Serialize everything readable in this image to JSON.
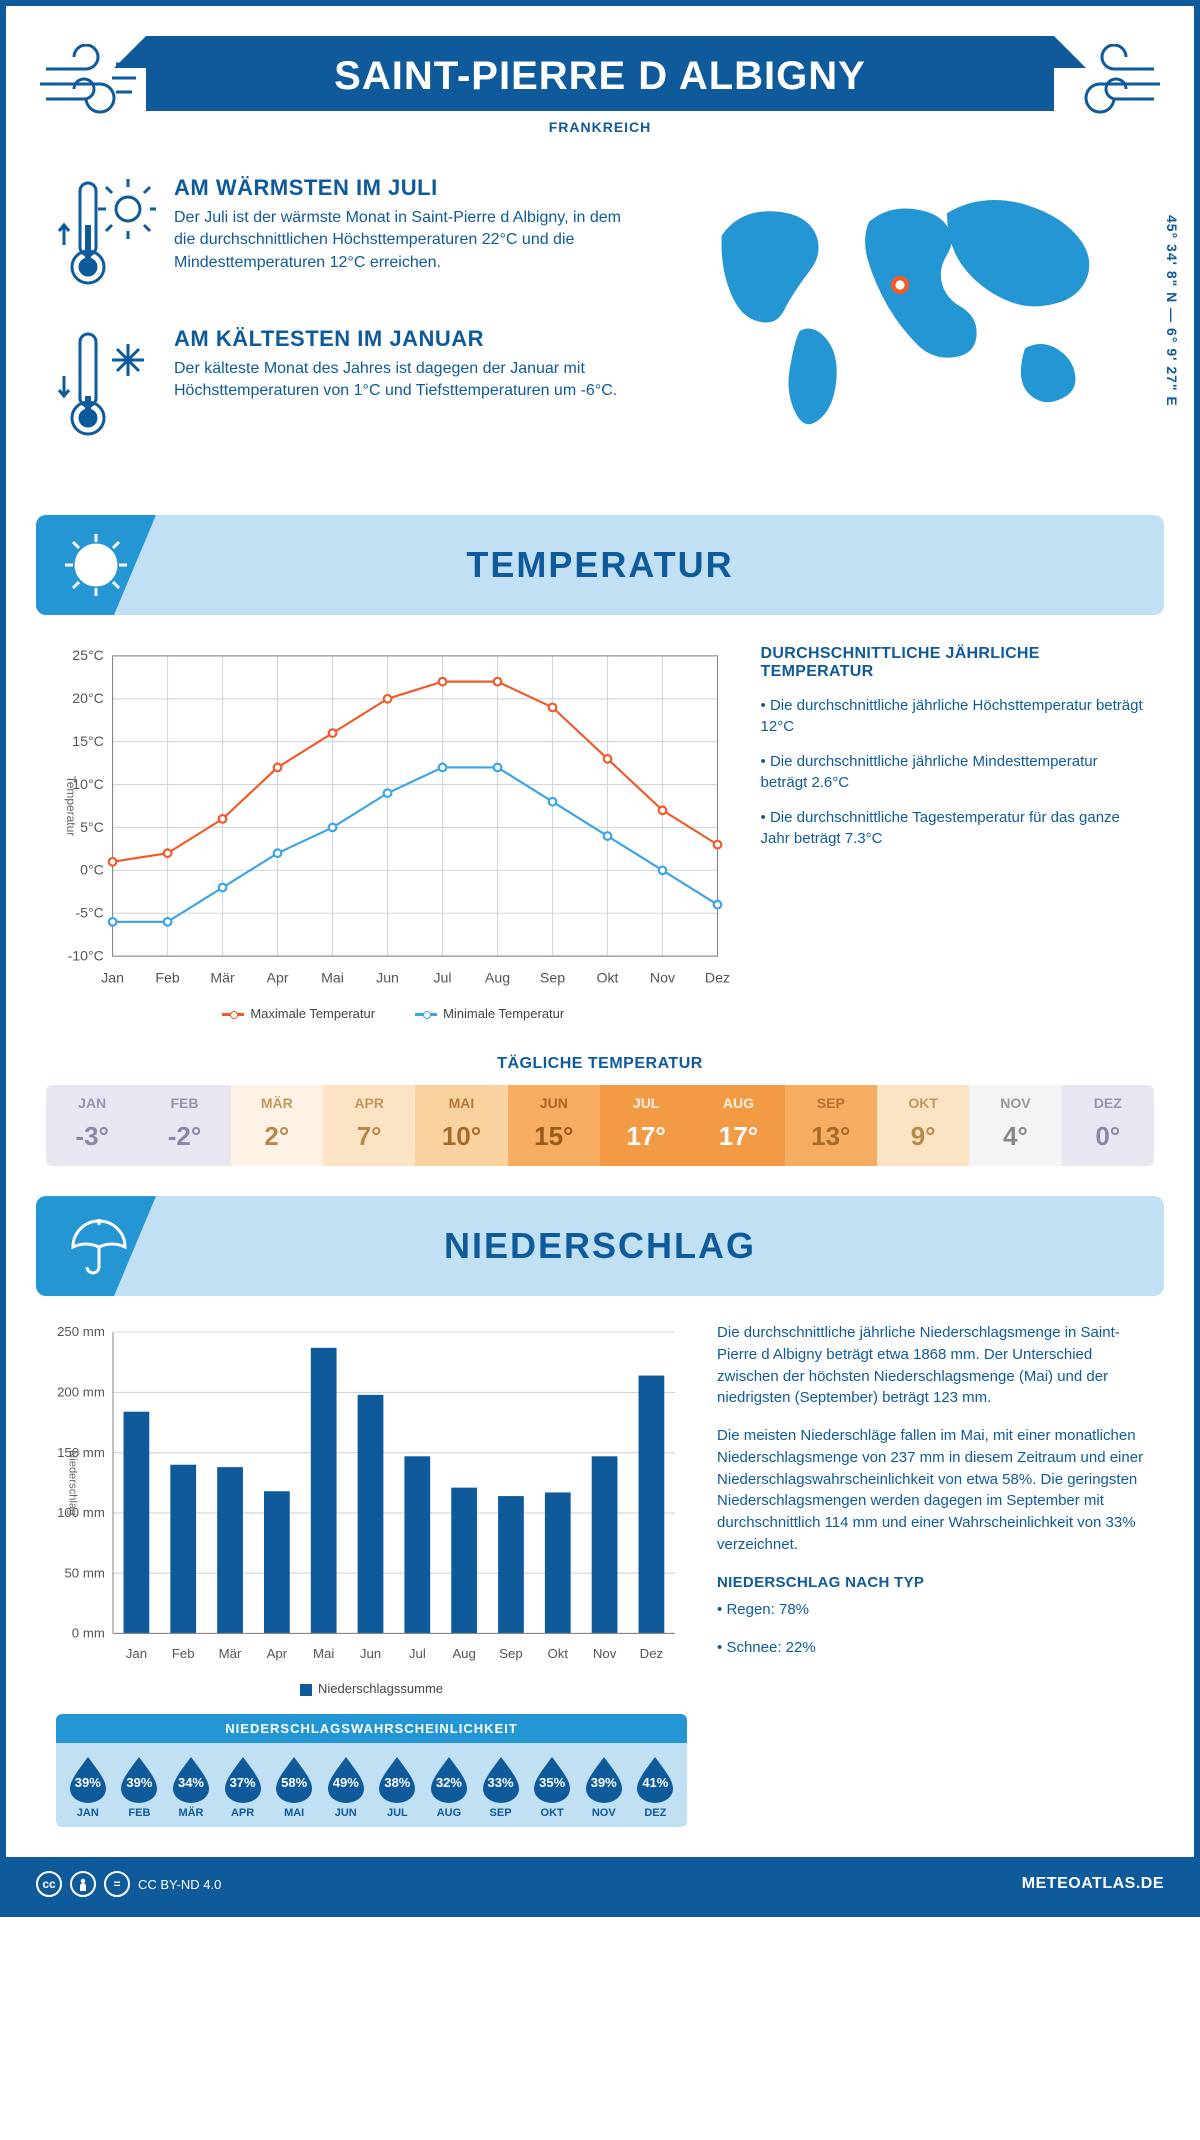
{
  "header": {
    "title": "SAINT-PIERRE D ALBIGNY",
    "country": "FRANKREICH"
  },
  "coords": "45° 34' 8\" N — 6° 9' 27\" E",
  "map_marker": {
    "left_pct": 47,
    "top_pct": 38
  },
  "colors": {
    "primary": "#0e5a9a",
    "accent": "#2496d4",
    "light": "#c2e0f4",
    "max_line": "#f15a29",
    "min_line": "#3aa4e8",
    "grid": "#cfd6dc",
    "bar": "#0e5a9a"
  },
  "warmest": {
    "title": "AM WÄRMSTEN IM JULI",
    "text": "Der Juli ist der wärmste Monat in Saint-Pierre d Albigny, in dem die durchschnittlichen Höchsttemperaturen 22°C und die Mindesttemperaturen 12°C erreichen."
  },
  "coldest": {
    "title": "AM KÄLTESTEN IM JANUAR",
    "text": "Der kälteste Monat des Jahres ist dagegen der Januar mit Höchsttemperaturen von 1°C und Tiefsttemperaturen um -6°C."
  },
  "section_temp": "TEMPERATUR",
  "section_precip": "NIEDERSCHLAG",
  "months": [
    "Jan",
    "Feb",
    "Mär",
    "Apr",
    "Mai",
    "Jun",
    "Jul",
    "Aug",
    "Sep",
    "Okt",
    "Nov",
    "Dez"
  ],
  "months_uc": [
    "JAN",
    "FEB",
    "MÄR",
    "APR",
    "MAI",
    "JUN",
    "JUL",
    "AUG",
    "SEP",
    "OKT",
    "NOV",
    "DEZ"
  ],
  "temp_chart": {
    "type": "line",
    "ylabel": "Temperatur",
    "ylim": [
      -10,
      25
    ],
    "ytick_step": 5,
    "max_series": [
      1,
      2,
      6,
      12,
      16,
      20,
      22,
      22,
      19,
      13,
      7,
      3
    ],
    "min_series": [
      -6,
      -6,
      -2,
      2,
      5,
      9,
      12,
      12,
      8,
      4,
      0,
      -4
    ],
    "legend_max": "Maximale Temperatur",
    "legend_min": "Minimale Temperatur",
    "line_width": 2,
    "marker_r": 3.5
  },
  "temp_side": {
    "heading": "DURCHSCHNITTLICHE JÄHRLICHE TEMPERATUR",
    "b1": "• Die durchschnittliche jährliche Höchsttemperatur beträgt 12°C",
    "b2": "• Die durchschnittliche jährliche Mindesttemperatur beträgt 2.6°C",
    "b3": "• Die durchschnittliche Tagestemperatur für das ganze Jahr beträgt 7.3°C"
  },
  "daily": {
    "title": "TÄGLICHE TEMPERATUR",
    "values": [
      "-3°",
      "-2°",
      "2°",
      "7°",
      "10°",
      "15°",
      "17°",
      "17°",
      "13°",
      "9°",
      "4°",
      "0°"
    ],
    "bg": [
      "#e9e6f2",
      "#e9e6f2",
      "#fdf2e3",
      "#fce3c4",
      "#f9d29f",
      "#f6ac61",
      "#f39a44",
      "#f39a44",
      "#f6ac61",
      "#fce3c4",
      "#f4f4f4",
      "#e9e6f2"
    ],
    "fg": [
      "#8a86a3",
      "#8a86a3",
      "#b78a4a",
      "#b78a4a",
      "#a56a2a",
      "#9a5a1a",
      "#fff",
      "#fff",
      "#a56a2a",
      "#b78a4a",
      "#888",
      "#8a86a3"
    ]
  },
  "precip_chart": {
    "type": "bar",
    "ylabel": "Niederschlag",
    "ylim": [
      0,
      250
    ],
    "ytick_step": 50,
    "unit": "mm",
    "values": [
      184,
      140,
      138,
      118,
      237,
      198,
      147,
      121,
      114,
      117,
      147,
      214
    ],
    "legend": "Niederschlagssumme",
    "bar_width": 0.55
  },
  "precip_text": {
    "p1": "Die durchschnittliche jährliche Niederschlagsmenge in Saint-Pierre d Albigny beträgt etwa 1868 mm. Der Unterschied zwischen der höchsten Niederschlagsmenge (Mai) und der niedrigsten (September) beträgt 123 mm.",
    "p2": "Die meisten Niederschläge fallen im Mai, mit einer monatlichen Niederschlagsmenge von 237 mm in diesem Zeitraum und einer Niederschlagswahrscheinlichkeit von etwa 58%. Die geringsten Niederschlagsmengen werden dagegen im September mit durchschnittlich 114 mm und einer Wahrscheinlichkeit von 33% verzeichnet.",
    "type_heading": "NIEDERSCHLAG NACH TYP",
    "type_b1": "• Regen: 78%",
    "type_b2": "• Schnee: 22%"
  },
  "prob": {
    "title": "NIEDERSCHLAGSWAHRSCHEINLICHKEIT",
    "values": [
      "39%",
      "39%",
      "34%",
      "37%",
      "58%",
      "49%",
      "38%",
      "32%",
      "33%",
      "35%",
      "39%",
      "41%"
    ]
  },
  "footer": {
    "license": "CC BY-ND 4.0",
    "site": "METEOATLAS.DE"
  }
}
